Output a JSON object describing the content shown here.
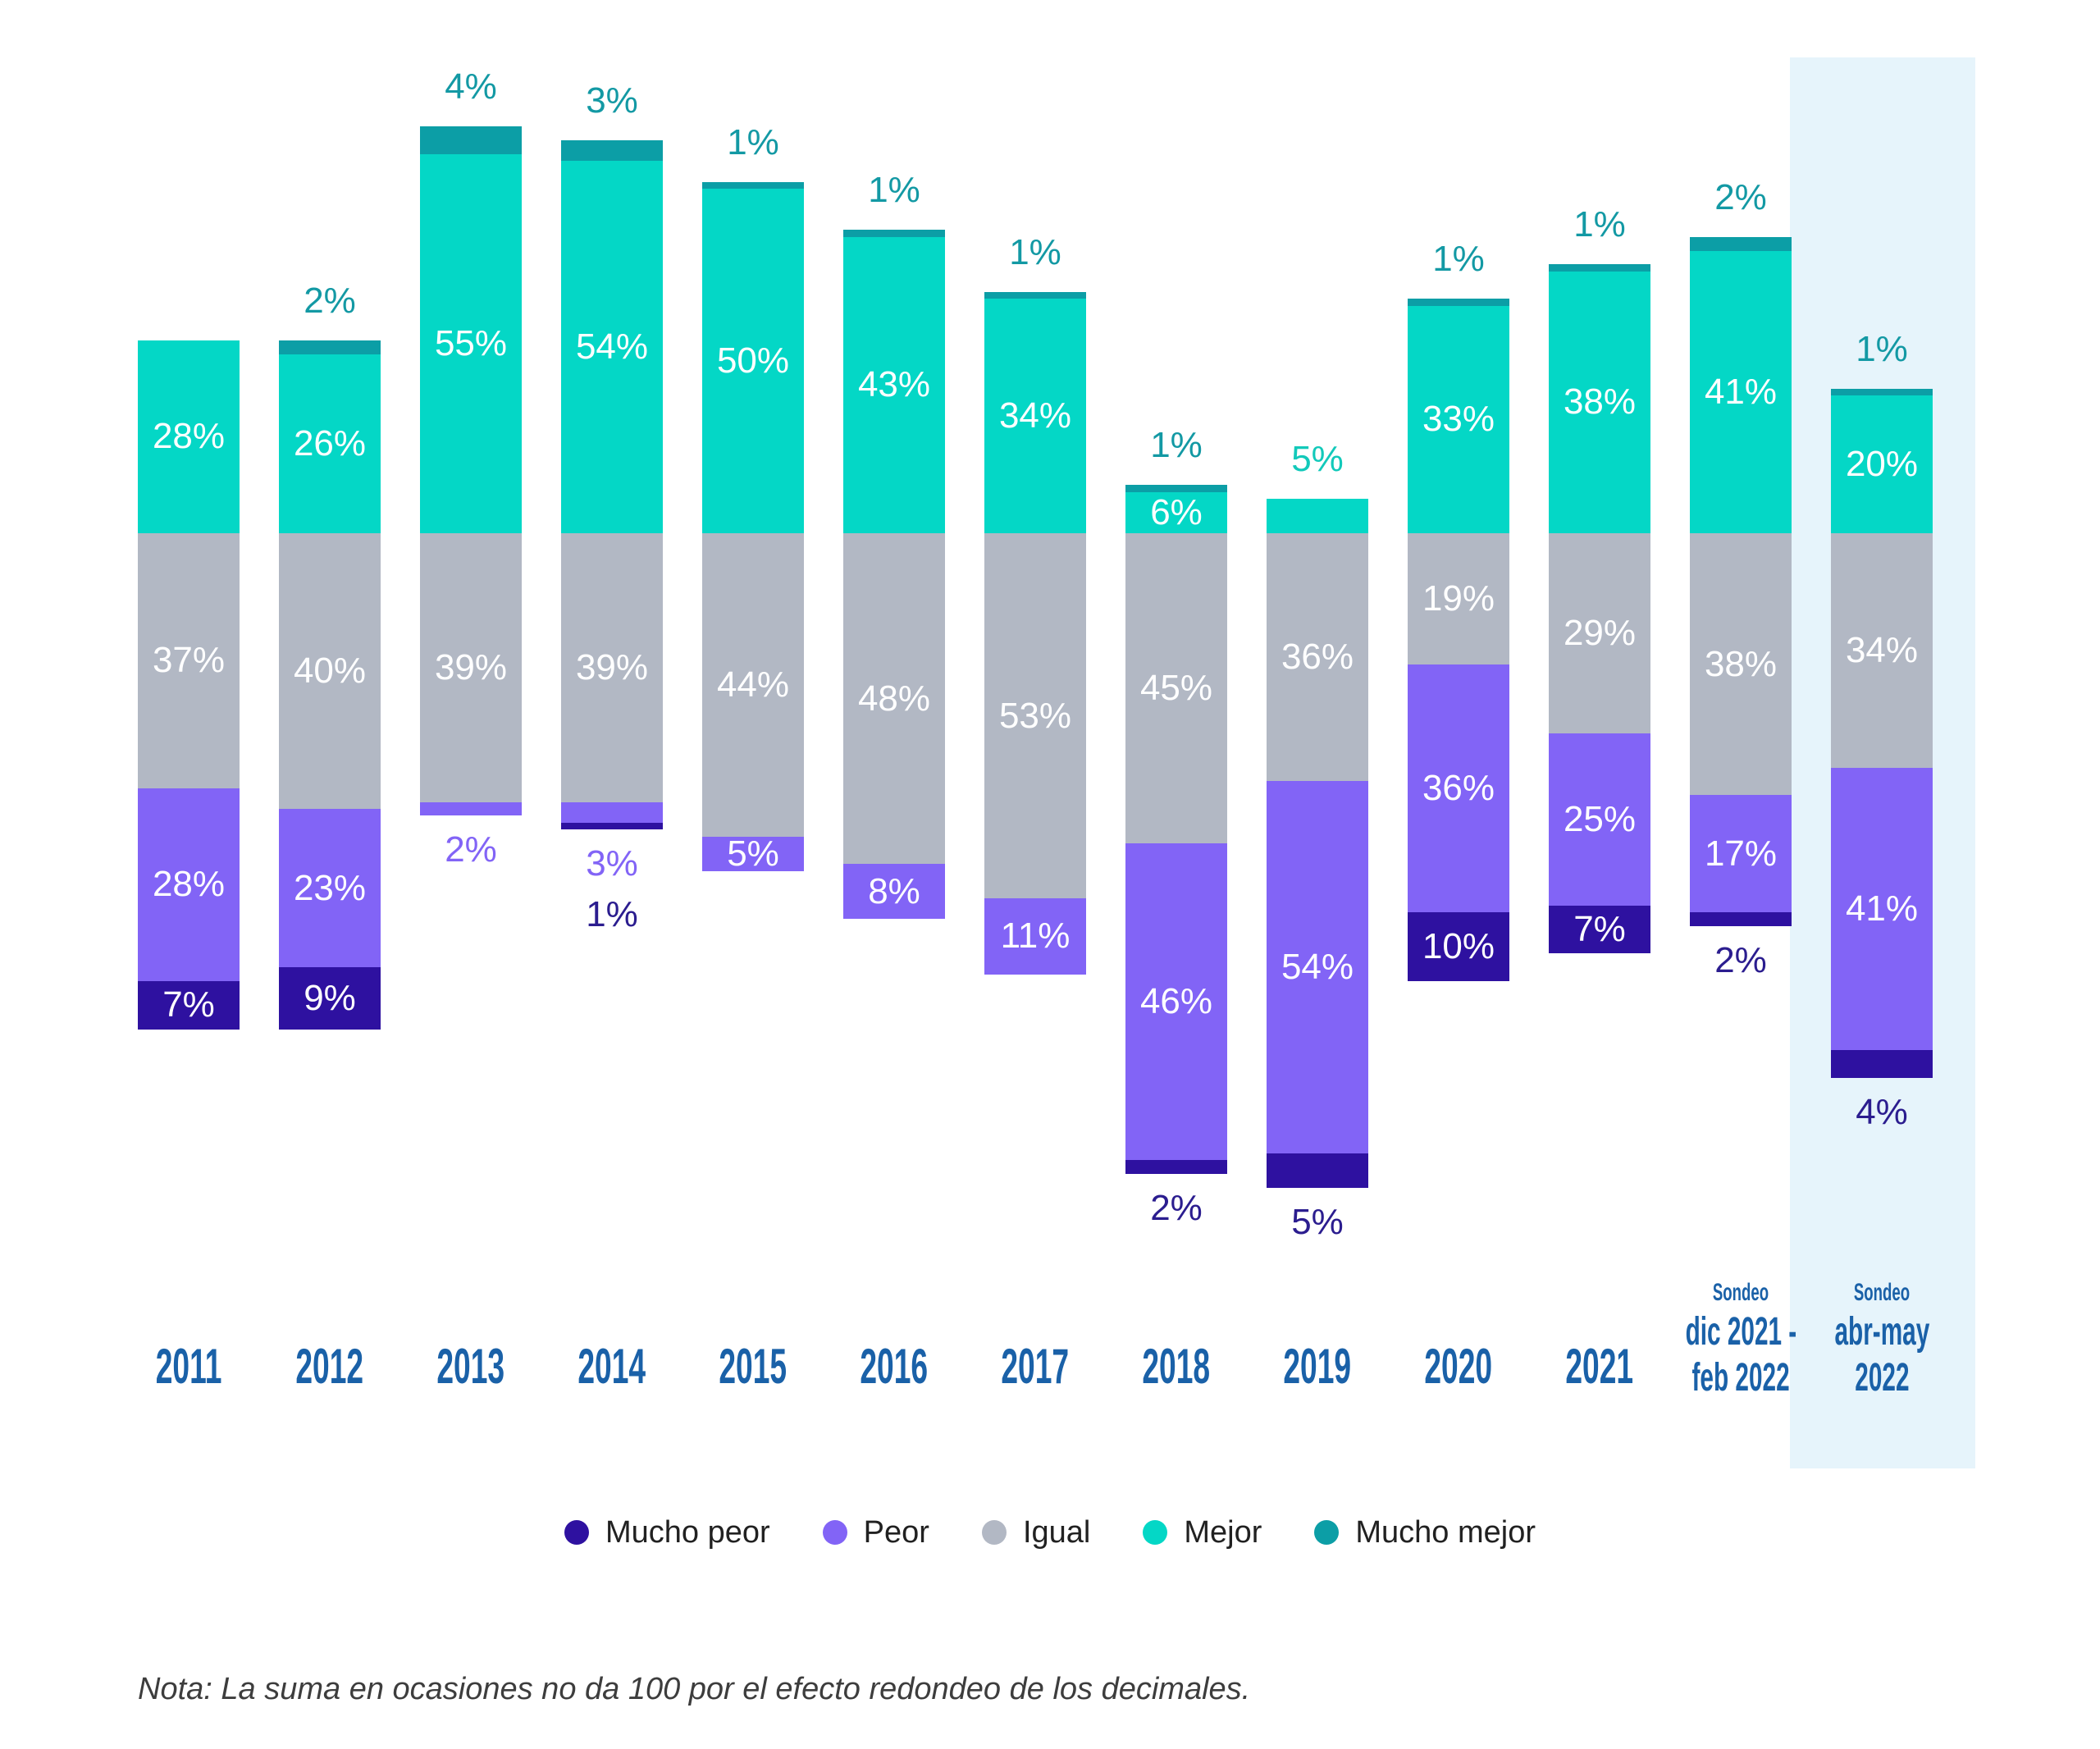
{
  "chart_data": {
    "type": "bar",
    "variant": "diverging-stacked-column",
    "baseline_alignment": "top edge of 'Igual' segment aligned across all columns",
    "grid": false,
    "legend_position": "bottom",
    "categories": [
      "2011",
      "2012",
      "2013",
      "2014",
      "2015",
      "2016",
      "2017",
      "2018",
      "2019",
      "2020",
      "2021",
      "Sondeo dic 2021 - feb 2022",
      "Sondeo abr-may 2022"
    ],
    "series": [
      {
        "key": "mucho_peor",
        "name": "Mucho peor",
        "color": "#2e11a0",
        "values": [
          7,
          9,
          0,
          1,
          0,
          0,
          0,
          2,
          5,
          10,
          7,
          2,
          4
        ]
      },
      {
        "key": "peor",
        "name": "Peor",
        "color": "#8264f6",
        "values": [
          28,
          23,
          2,
          3,
          5,
          8,
          11,
          46,
          54,
          36,
          25,
          17,
          41
        ]
      },
      {
        "key": "igual",
        "name": "Igual",
        "color": "#b2b8c4",
        "values": [
          37,
          40,
          39,
          39,
          44,
          48,
          53,
          45,
          36,
          19,
          29,
          38,
          34
        ]
      },
      {
        "key": "mejor",
        "name": "Mejor",
        "color": "#04d7c6",
        "values": [
          28,
          26,
          55,
          54,
          50,
          43,
          34,
          6,
          5,
          33,
          38,
          41,
          20
        ]
      },
      {
        "key": "mucho_mejor",
        "name": "Mucho mejor",
        "color": "#0c9ea6",
        "values": [
          0,
          2,
          4,
          3,
          1,
          1,
          1,
          1,
          0,
          1,
          1,
          2,
          1
        ]
      }
    ],
    "data_labels": [
      {
        "mucho_peor": {
          "text": "7%",
          "placement": "inside"
        },
        "peor": {
          "text": "28%",
          "placement": "inside"
        },
        "igual": {
          "text": "37%",
          "placement": "inside"
        },
        "mejor": {
          "text": "28%",
          "placement": "inside"
        }
      },
      {
        "mucho_peor": {
          "text": "9%",
          "placement": "inside"
        },
        "peor": {
          "text": "23%",
          "placement": "inside"
        },
        "igual": {
          "text": "40%",
          "placement": "inside"
        },
        "mejor": {
          "text": "26%",
          "placement": "inside"
        },
        "mucho_mejor": {
          "text": "2%",
          "placement": "above"
        }
      },
      {
        "peor": {
          "text": "2%",
          "placement": "below"
        },
        "igual": {
          "text": "39%",
          "placement": "inside"
        },
        "mejor": {
          "text": "55%",
          "placement": "inside"
        },
        "mucho_mejor": {
          "text": "4%",
          "placement": "above"
        }
      },
      {
        "mucho_peor": {
          "text": "1%",
          "placement": "below"
        },
        "peor": {
          "text": "3%",
          "placement": "below"
        },
        "igual": {
          "text": "39%",
          "placement": "inside"
        },
        "mejor": {
          "text": "54%",
          "placement": "inside"
        },
        "mucho_mejor": {
          "text": "3%",
          "placement": "above"
        }
      },
      {
        "peor": {
          "text": "5%",
          "placement": "inside"
        },
        "igual": {
          "text": "44%",
          "placement": "inside"
        },
        "mejor": {
          "text": "50%",
          "placement": "inside"
        },
        "mucho_mejor": {
          "text": "1%",
          "placement": "above"
        }
      },
      {
        "peor": {
          "text": "8%",
          "placement": "inside"
        },
        "igual": {
          "text": "48%",
          "placement": "inside"
        },
        "mejor": {
          "text": "43%",
          "placement": "inside"
        },
        "mucho_mejor": {
          "text": "1%",
          "placement": "above"
        }
      },
      {
        "peor": {
          "text": "11%",
          "placement": "inside"
        },
        "igual": {
          "text": "53%",
          "placement": "inside"
        },
        "mejor": {
          "text": "34%",
          "placement": "inside"
        },
        "mucho_mejor": {
          "text": "1%",
          "placement": "above"
        }
      },
      {
        "mucho_peor": {
          "text": "2%",
          "placement": "below"
        },
        "peor": {
          "text": "46%",
          "placement": "inside"
        },
        "igual": {
          "text": "45%",
          "placement": "inside"
        },
        "mejor": {
          "text": "6%",
          "placement": "inside"
        },
        "mucho_mejor": {
          "text": "1%",
          "placement": "above"
        }
      },
      {
        "mucho_peor": {
          "text": "5%",
          "placement": "below"
        },
        "peor": {
          "text": "54%",
          "placement": "inside"
        },
        "igual": {
          "text": "36%",
          "placement": "inside"
        },
        "mejor": {
          "text": "5%",
          "placement": "above"
        }
      },
      {
        "mucho_peor": {
          "text": "10%",
          "placement": "inside"
        },
        "peor": {
          "text": "36%",
          "placement": "inside"
        },
        "igual": {
          "text": "19%",
          "placement": "inside"
        },
        "mejor": {
          "text": "33%",
          "placement": "inside"
        },
        "mucho_mejor": {
          "text": "1%",
          "placement": "above"
        }
      },
      {
        "mucho_peor": {
          "text": "7%",
          "placement": "inside"
        },
        "peor": {
          "text": "25%",
          "placement": "inside"
        },
        "igual": {
          "text": "29%",
          "placement": "inside"
        },
        "mejor": {
          "text": "38%",
          "placement": "inside"
        },
        "mucho_mejor": {
          "text": "1%",
          "placement": "above"
        }
      },
      {
        "mucho_peor": {
          "text": "2%",
          "placement": "below"
        },
        "peor": {
          "text": "17%",
          "placement": "inside"
        },
        "igual": {
          "text": "38%",
          "placement": "inside"
        },
        "mejor": {
          "text": "41%",
          "placement": "inside"
        },
        "mucho_mejor": {
          "text": "2%",
          "placement": "above"
        }
      },
      {
        "mucho_peor": {
          "text": "4%",
          "placement": "below"
        },
        "peor": {
          "text": "41%",
          "placement": "inside"
        },
        "igual": {
          "text": "34%",
          "placement": "inside"
        },
        "mejor": {
          "text": "20%",
          "placement": "inside"
        },
        "mucho_mejor": {
          "text": "1%",
          "placement": "above"
        }
      }
    ],
    "label_colors": {
      "inside": "#ffffff",
      "above_mucho_mejor": "#1399a4",
      "above_mejor": "#12c9ba",
      "below_peor": "#8264f6",
      "below_mucho_peor": "#2b1d8f"
    },
    "x_axis": {
      "tick_color": "#1a61a8",
      "columns": [
        {
          "lines": [
            "2011"
          ]
        },
        {
          "lines": [
            "2012"
          ]
        },
        {
          "lines": [
            "2013"
          ]
        },
        {
          "lines": [
            "2014"
          ]
        },
        {
          "lines": [
            "2015"
          ]
        },
        {
          "lines": [
            "2016"
          ]
        },
        {
          "lines": [
            "2017"
          ]
        },
        {
          "lines": [
            "2018"
          ]
        },
        {
          "lines": [
            "2019"
          ]
        },
        {
          "lines": [
            "2020"
          ]
        },
        {
          "lines": [
            "2021"
          ]
        },
        {
          "small": "Sondeo",
          "lines": [
            "dic 2021 -",
            "feb 2022"
          ]
        },
        {
          "small": "Sondeo",
          "lines": [
            "abr-may",
            "2022"
          ],
          "highlight": true
        }
      ]
    },
    "highlight_band": {
      "column": "Sondeo abr-may 2022",
      "color": "#e6f4fb"
    },
    "legend": {
      "items": [
        "Mucho peor",
        "Peor",
        "Igual",
        "Mejor",
        "Mucho mejor"
      ]
    },
    "note": "Nota: La suma en ocasiones no da 100 por el efecto redondeo de los decimales."
  }
}
